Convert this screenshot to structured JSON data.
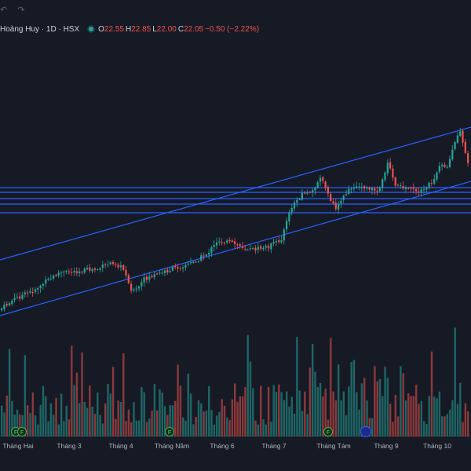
{
  "toolbar": {
    "undo_icon": "undo-icon",
    "redo_icon": "redo-icon"
  },
  "legend": {
    "title": "Hoàng Huy · 1D · HSX",
    "open_label": "O",
    "open": "22.55",
    "high_label": "H",
    "high": "22.85",
    "low_label": "L",
    "low": "22.00",
    "close_label": "C",
    "close": "22.05",
    "change": "−0.50 (−2.22%)"
  },
  "colors": {
    "up": "#26a69a",
    "down": "#ef5350",
    "line": "#2962ff",
    "bg": "#161a25",
    "grid": "#2a2e39"
  },
  "x_axis_labels": [
    "Tháng Hai",
    "Tháng 3",
    "Tháng 4",
    "Tháng Năm",
    "Tháng 6",
    "Tháng 7",
    "Tháng Tám",
    "Tháng 9",
    "Tháng 10"
  ],
  "events": [
    {
      "label": "F",
      "month": "Tháng Hai"
    },
    {
      "label": "F",
      "month": "Tháng Hai"
    },
    {
      "label": "F",
      "month": "Tháng Năm"
    },
    {
      "label": "F",
      "month": "Tháng Tám"
    },
    {
      "label": "",
      "month": "Tháng Tám"
    }
  ],
  "chart_data": {
    "type": "candlestick",
    "symbol": "Hoàng Huy",
    "interval": "1D",
    "exchange": "HSX",
    "last_candle": {
      "open": 22.55,
      "high": 22.85,
      "low": 22.0,
      "close": 22.05,
      "change": -0.5,
      "change_pct": -2.22
    },
    "trend_channel": {
      "upper": "rising",
      "lower": "rising"
    },
    "horizontal_levels_count": 5,
    "volume_panel": true,
    "grid": false
  }
}
